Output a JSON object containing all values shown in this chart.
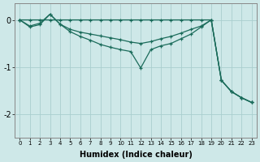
{
  "line1_x": [
    0,
    1,
    2,
    3,
    4,
    5,
    6,
    7,
    8,
    9,
    10,
    11,
    12,
    13,
    14,
    15,
    16,
    17,
    18,
    19,
    20,
    21,
    22,
    23
  ],
  "line1_y": [
    0.0,
    0.0,
    0.0,
    0.0,
    0.0,
    0.0,
    0.0,
    0.0,
    0.0,
    0.0,
    0.0,
    0.0,
    0.0,
    0.0,
    0.0,
    0.0,
    0.0,
    0.0,
    0.0,
    0.0,
    -1.28,
    -1.52,
    -1.65,
    -1.75
  ],
  "line2_x": [
    0,
    1,
    2,
    3,
    4,
    5,
    6,
    7,
    8,
    9,
    10,
    11,
    12,
    13,
    14,
    15,
    16,
    17,
    18,
    19,
    20,
    21,
    22,
    23
  ],
  "line2_y": [
    0.0,
    -0.13,
    -0.07,
    0.12,
    -0.09,
    -0.2,
    -0.26,
    -0.3,
    -0.34,
    -0.38,
    -0.42,
    -0.47,
    -0.5,
    -0.46,
    -0.4,
    -0.35,
    -0.28,
    -0.2,
    -0.13,
    0.0,
    -1.28,
    -1.52,
    -1.65,
    -1.75
  ],
  "line3_x": [
    0,
    1,
    2,
    3,
    4,
    5,
    6,
    7,
    8,
    9,
    10,
    11,
    12,
    13,
    14,
    15,
    16,
    17,
    18,
    19,
    20,
    21,
    22,
    23
  ],
  "line3_y": [
    0.0,
    -0.15,
    -0.1,
    0.12,
    -0.09,
    -0.25,
    -0.35,
    -0.43,
    -0.52,
    -0.58,
    -0.63,
    -0.67,
    -1.02,
    -0.63,
    -0.55,
    -0.5,
    -0.4,
    -0.3,
    -0.15,
    0.0,
    -1.28,
    -1.52,
    -1.65,
    -1.75
  ],
  "color": "#1a6b5a",
  "bg_color": "#cee8e8",
  "grid_color": "#aacece",
  "xlabel": "Humidex (Indice chaleur)",
  "xlim": [
    -0.5,
    23.5
  ],
  "ylim": [
    -2.5,
    0.35
  ],
  "yticks": [
    0,
    -1,
    -2
  ],
  "xticks": [
    0,
    1,
    2,
    3,
    4,
    5,
    6,
    7,
    8,
    9,
    10,
    11,
    12,
    13,
    14,
    15,
    16,
    17,
    18,
    19,
    20,
    21,
    22,
    23
  ]
}
